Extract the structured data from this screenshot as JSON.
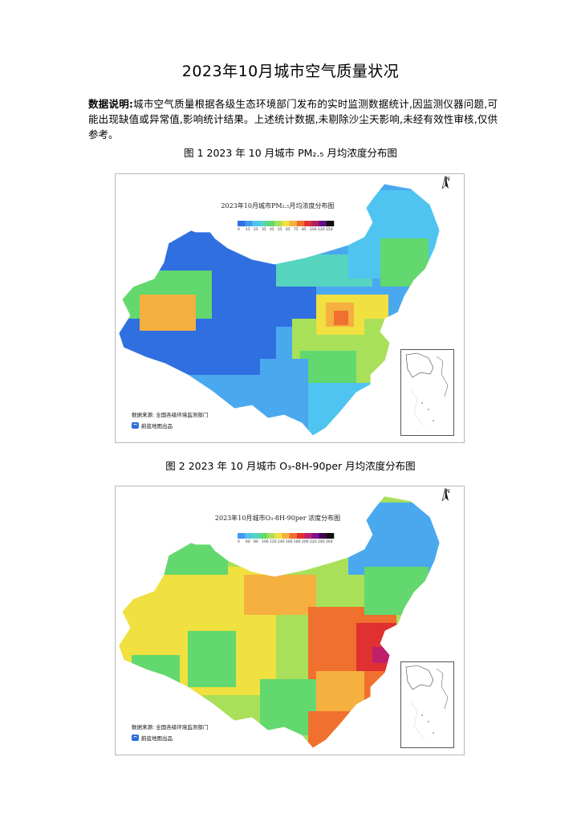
{
  "doc_title": "2023年10月城市空气质量状况",
  "note": {
    "label": "数据说明:",
    "text": "城市空气质量根据各级生态环境部门发布的实时监测数据统计,因监测仪器问题,可能出现缺值或异常值,影响统计结果。上述统计数据,未剔除沙尘天影响,未经有效性审核,仅供参考。"
  },
  "figures": [
    {
      "caption": "图 1 2023 年 10 月城市 PM₂.₅ 月均浓度分布图",
      "map_title": "2023年10月城市PM₂.₅月均浓度分布图",
      "legend_ticks": [
        "0",
        "15",
        "25",
        "35",
        "45",
        "55",
        "65",
        "75",
        "85",
        "100",
        "120",
        "150"
      ],
      "legend_colors": [
        "#2f6fe0",
        "#3f9af0",
        "#4fc4f0",
        "#56d4c0",
        "#62d86e",
        "#a8e05a",
        "#f0e040",
        "#f5b040",
        "#f07030",
        "#e03030",
        "#b02060",
        "#601080",
        "#101010"
      ],
      "source": "数据来源: 全国各级环境监测部门",
      "brand": "蔚蓝地图出品",
      "north_label": "N"
    },
    {
      "caption": "图 2 2023 年 10 月城市 O₃-8H-90per 月均浓度分布图",
      "map_title": "2023年10月城市O₃-8H-90per 浓度分布图",
      "legend_ticks": [
        "0",
        "60",
        "80",
        "100",
        "120",
        "140",
        "160",
        "180",
        "200",
        "220",
        "240",
        "260"
      ],
      "legend_colors": [
        "#3f9af0",
        "#4fc4f0",
        "#56d4c0",
        "#62d86e",
        "#a8e05a",
        "#f0e040",
        "#f5b040",
        "#f07030",
        "#e03030",
        "#c0206a",
        "#801090",
        "#400050",
        "#101010"
      ],
      "source": "数据来源: 全国各级环境监测部门",
      "brand": "蔚蓝地图出品",
      "north_label": "N"
    }
  ]
}
